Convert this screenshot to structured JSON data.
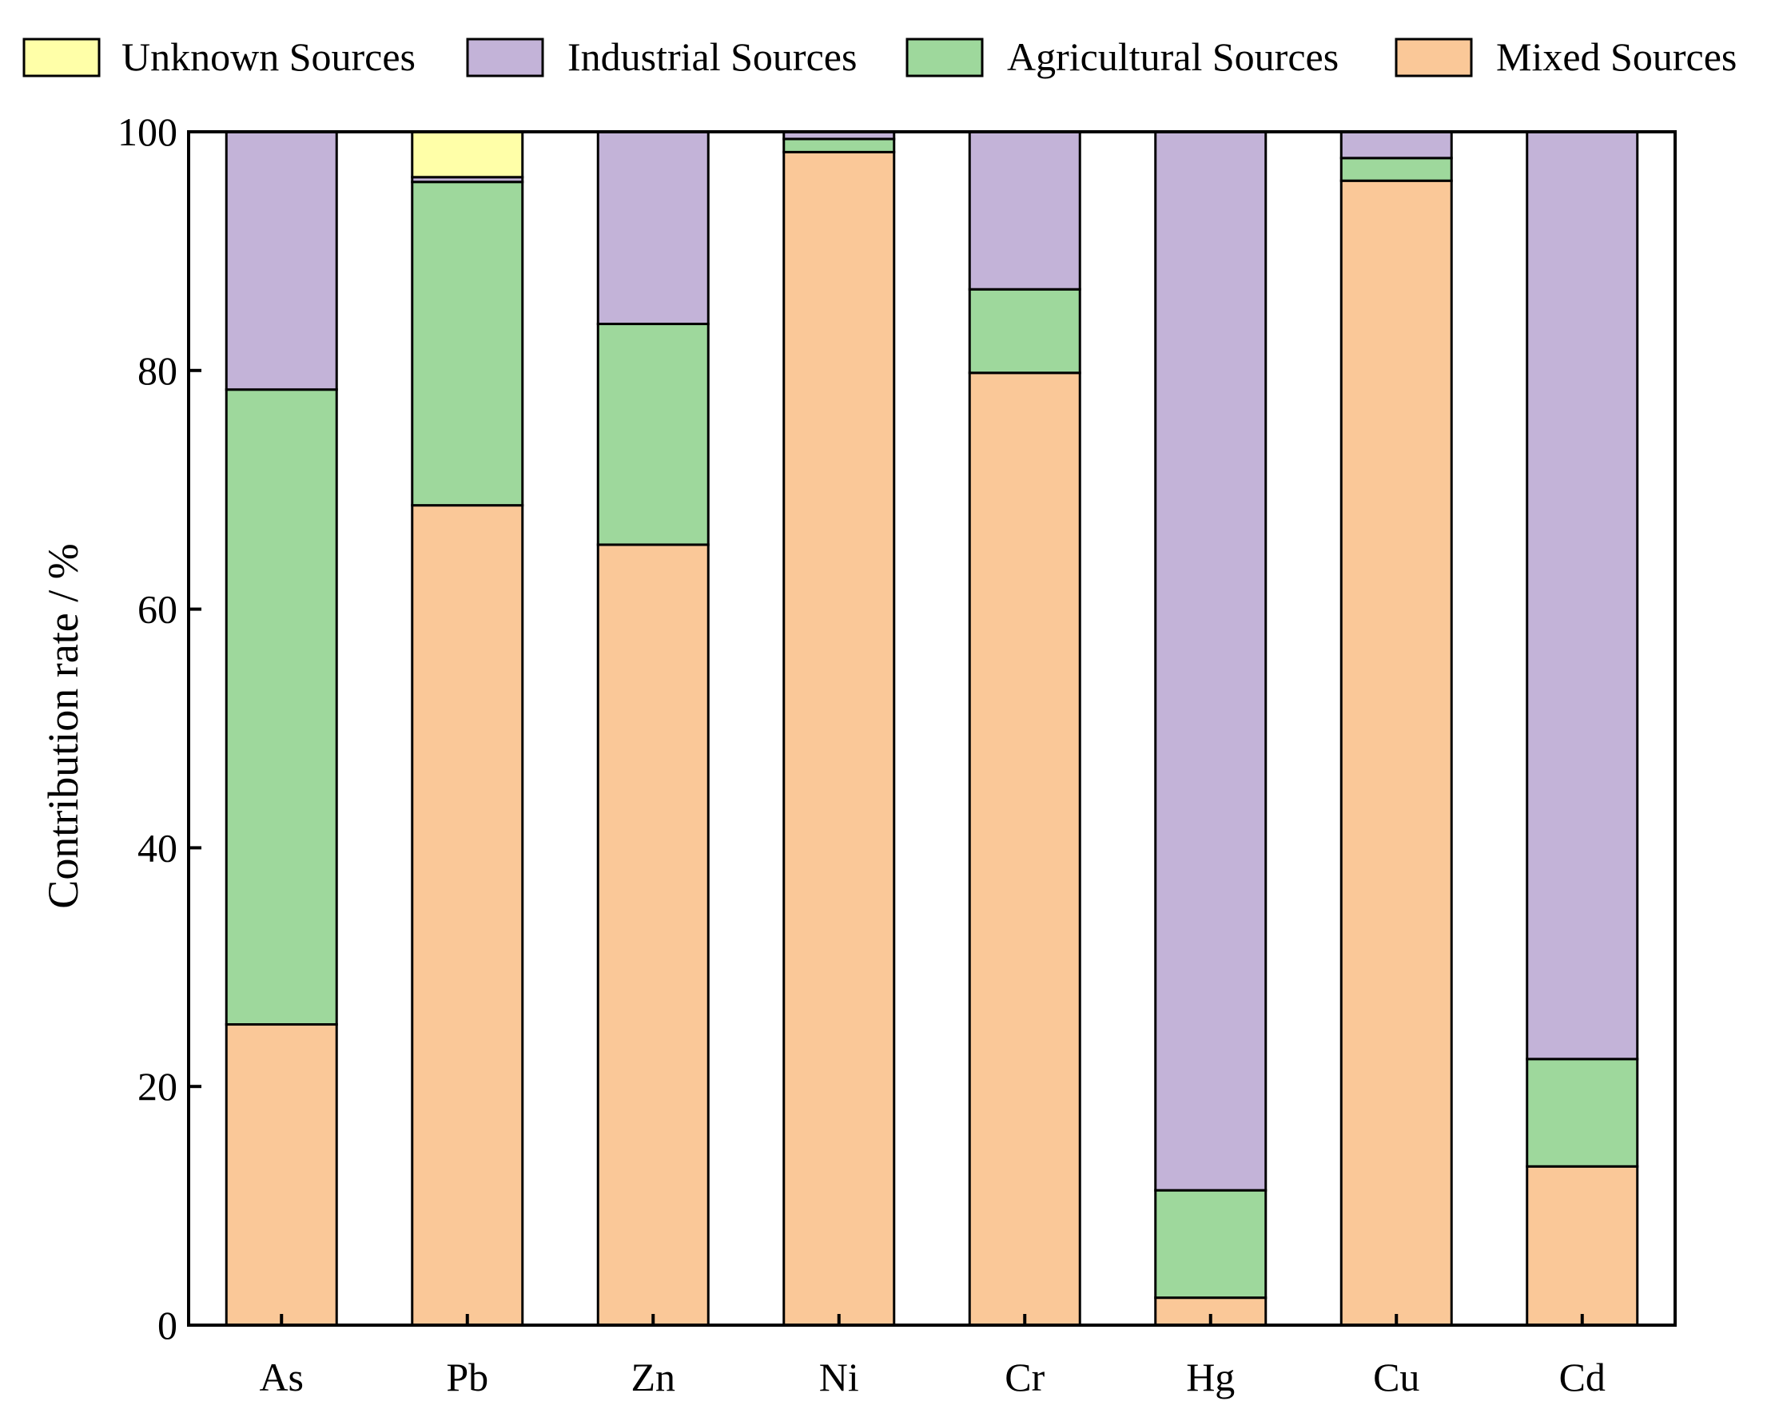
{
  "chart_data": {
    "type": "bar",
    "stacked": true,
    "title": "",
    "xlabel": "",
    "ylabel": "Contribution rate / %",
    "ylim": [
      0,
      100
    ],
    "yticks": [
      "0",
      "20",
      "40",
      "60",
      "80",
      "100"
    ],
    "legend_position": "top",
    "categories": [
      "As",
      "Pb",
      "Zn",
      "Ni",
      "Cr",
      "Hg",
      "Cu",
      "Cd"
    ],
    "series": [
      {
        "name": "Mixed Sources",
        "color": "#FAC898",
        "values": [
          25.2,
          68.7,
          65.4,
          98.3,
          79.8,
          2.3,
          95.9,
          13.3
        ]
      },
      {
        "name": "Agricultural Sources",
        "color": "#9ED89C",
        "values": [
          53.2,
          27.1,
          18.5,
          1.1,
          7.0,
          9.0,
          1.9,
          9.0
        ]
      },
      {
        "name": "Industrial Sources",
        "color": "#C3B3D8",
        "values": [
          21.6,
          0.4,
          16.1,
          0.6,
          13.2,
          88.7,
          2.2,
          77.7
        ]
      },
      {
        "name": "Unknown Sources",
        "color": "#FFFFA8",
        "values": [
          0,
          3.8,
          0,
          0,
          0,
          0,
          0,
          0
        ]
      }
    ],
    "legend_order": [
      "Unknown Sources",
      "Industrial Sources",
      "Agricultural Sources",
      "Mixed Sources"
    ]
  }
}
